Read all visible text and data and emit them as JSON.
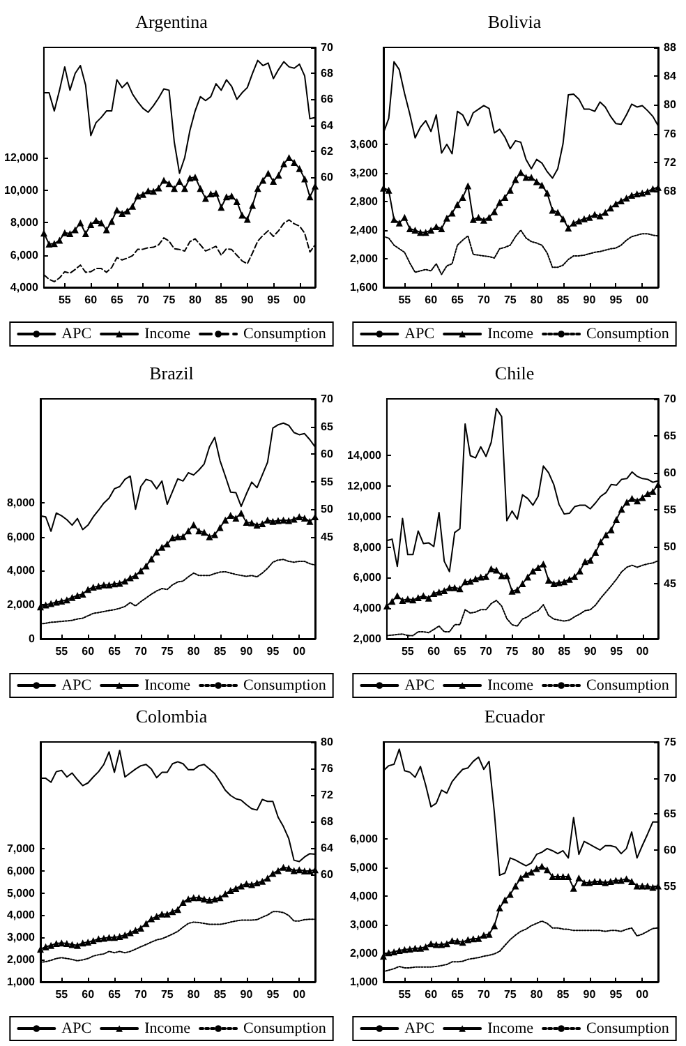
{
  "chart_data": [
    {
      "type": "line",
      "title": "Argentina",
      "legend": "bottom",
      "x": [
        1951,
        1952,
        1953,
        1954,
        1955,
        1956,
        1957,
        1958,
        1959,
        1960,
        1961,
        1962,
        1963,
        1964,
        1965,
        1966,
        1967,
        1968,
        1969,
        1970,
        1971,
        1972,
        1973,
        1974,
        1975,
        1976,
        1977,
        1978,
        1979,
        1980,
        1981,
        1982,
        1983,
        1984,
        1985,
        1986,
        1987,
        1988,
        1989,
        1990,
        1991,
        1992,
        1993,
        1994,
        1995,
        1996,
        1997,
        1998,
        1999,
        2000,
        2001,
        2002,
        2003
      ],
      "xlim": [
        1951,
        2003
      ],
      "xticks": [
        {
          "value": 1955,
          "label": "55"
        },
        {
          "value": 1960,
          "label": "60"
        },
        {
          "value": 1965,
          "label": "65"
        },
        {
          "value": 1970,
          "label": "70"
        },
        {
          "value": 1975,
          "label": "75"
        },
        {
          "value": 1980,
          "label": "80"
        },
        {
          "value": 1985,
          "label": "85"
        },
        {
          "value": 1990,
          "label": "90"
        },
        {
          "value": 1995,
          "label": "95"
        },
        {
          "value": 2000,
          "label": "00"
        }
      ],
      "ylim": [
        4000,
        18800
      ],
      "yticks": [
        {
          "value": 4000,
          "label": "4,000"
        },
        {
          "value": 6000,
          "label": "6,000"
        },
        {
          "value": 8000,
          "label": "8,000"
        },
        {
          "value": 10000,
          "label": "10,000"
        },
        {
          "value": 12000,
          "label": "12,000"
        }
      ],
      "y2lim": [
        51.5,
        70
      ],
      "y2ticks": [
        60,
        62,
        64,
        66,
        68,
        70
      ],
      "series": [
        {
          "name": "APC",
          "color": "#000000",
          "axis": "y2",
          "marker": "none",
          "line_style": "solid",
          "values": [
            66.5,
            66.5,
            65.1,
            66.7,
            68.5,
            66.7,
            68,
            68.6,
            67.1,
            63.2,
            64.2,
            64.6,
            65.1,
            65.1,
            67.5,
            66.9,
            67.3,
            66.4,
            65.8,
            65.3,
            65,
            65.5,
            66.1,
            66.8,
            66.7,
            62.7,
            60.3,
            61.5,
            63.6,
            65.1,
            66.2,
            65.9,
            66.2,
            67.2,
            66.7,
            67.5,
            67,
            66,
            66.5,
            66.9,
            68,
            69,
            68.6,
            68.8,
            67.6,
            68.3,
            68.9,
            68.5,
            68.4,
            68.7,
            67.8,
            64.5,
            64.6
          ]
        },
        {
          "name": "Income",
          "color": "#000000",
          "axis": "y",
          "marker": "triangle",
          "line_style": "solid",
          "values": [
            7340,
            6670,
            6700,
            6900,
            7370,
            7310,
            7550,
            7980,
            7310,
            7870,
            8130,
            7980,
            7550,
            8070,
            8770,
            8560,
            8710,
            9000,
            9640,
            9730,
            9960,
            9930,
            10130,
            10600,
            10400,
            10100,
            10540,
            10100,
            10740,
            10800,
            10100,
            9490,
            9760,
            9810,
            8940,
            9580,
            9640,
            9290,
            8450,
            8190,
            9060,
            10100,
            10600,
            11030,
            10540,
            10920,
            11620,
            12000,
            11700,
            11330,
            10690,
            9580,
            10250
          ]
        },
        {
          "name": "Consumption",
          "color": "#000000",
          "axis": "y",
          "marker": "none",
          "line_style": "dashed",
          "values": [
            4780,
            4490,
            4350,
            4580,
            4960,
            4870,
            5100,
            5370,
            4930,
            4960,
            5160,
            5160,
            4930,
            5220,
            5830,
            5690,
            5800,
            5950,
            6350,
            6350,
            6440,
            6470,
            6620,
            7050,
            6850,
            6380,
            6330,
            6240,
            6820,
            6990,
            6620,
            6240,
            6380,
            6530,
            5980,
            6380,
            6330,
            5980,
            5630,
            5450,
            6120,
            6850,
            7200,
            7490,
            7140,
            7490,
            7950,
            8160,
            7920,
            7780,
            7340,
            6180,
            6620
          ]
        }
      ]
    },
    {
      "type": "line",
      "title": "Bolivia",
      "legend": "bottom",
      "x": [
        1951,
        1952,
        1953,
        1954,
        1955,
        1956,
        1957,
        1958,
        1959,
        1960,
        1961,
        1962,
        1963,
        1964,
        1965,
        1966,
        1967,
        1968,
        1969,
        1970,
        1971,
        1972,
        1973,
        1974,
        1975,
        1976,
        1977,
        1978,
        1979,
        1980,
        1981,
        1982,
        1983,
        1984,
        1985,
        1986,
        1987,
        1988,
        1989,
        1990,
        1991,
        1992,
        1993,
        1994,
        1995,
        1996,
        1997,
        1998,
        1999,
        2000,
        2001,
        2002,
        2003
      ],
      "xlim": [
        1951,
        2003
      ],
      "xticks": [
        {
          "value": 1955,
          "label": "55"
        },
        {
          "value": 1960,
          "label": "60"
        },
        {
          "value": 1965,
          "label": "65"
        },
        {
          "value": 1970,
          "label": "70"
        },
        {
          "value": 1975,
          "label": "75"
        },
        {
          "value": 1980,
          "label": "80"
        },
        {
          "value": 1985,
          "label": "85"
        },
        {
          "value": 1990,
          "label": "90"
        },
        {
          "value": 1995,
          "label": "95"
        },
        {
          "value": 2000,
          "label": "00"
        }
      ],
      "ylim": [
        1600,
        4960
      ],
      "yticks": [
        {
          "value": 1600,
          "label": "1,600"
        },
        {
          "value": 2000,
          "label": "2,000"
        },
        {
          "value": 2400,
          "label": "2,400"
        },
        {
          "value": 2800,
          "label": "2,800"
        },
        {
          "value": 3200,
          "label": "3,200"
        },
        {
          "value": 3600,
          "label": "3,600"
        }
      ],
      "y2lim": [
        54.6,
        88
      ],
      "y2ticks": [
        68,
        72,
        76,
        80,
        84,
        88
      ],
      "series": [
        {
          "name": "APC",
          "color": "#000000",
          "axis": "y2",
          "marker": "none",
          "line_style": "solid",
          "values": [
            76.1,
            78.1,
            86,
            84.9,
            81.6,
            78.7,
            75.4,
            76.9,
            77.8,
            76.3,
            78.6,
            73.3,
            74.5,
            73.2,
            79.1,
            78.6,
            77.1,
            78.9,
            79.4,
            79.9,
            79.5,
            76.1,
            76.6,
            75.5,
            73.9,
            75,
            74.8,
            72.4,
            71.1,
            72.4,
            71.9,
            70.7,
            69.8,
            71.1,
            74.6,
            81.4,
            81.5,
            80.8,
            79.4,
            79.4,
            79.1,
            80.4,
            79.7,
            78.4,
            77.4,
            77.3,
            78.6,
            80.1,
            79.7,
            79.9,
            79.2,
            78.4,
            77.1
          ]
        },
        {
          "name": "Income",
          "color": "#000000",
          "axis": "y",
          "marker": "triangle",
          "line_style": "solid",
          "values": [
            2990,
            2960,
            2550,
            2500,
            2580,
            2420,
            2400,
            2370,
            2370,
            2400,
            2450,
            2420,
            2570,
            2640,
            2760,
            2860,
            3020,
            2550,
            2580,
            2540,
            2580,
            2660,
            2790,
            2860,
            2960,
            3110,
            3210,
            3140,
            3140,
            3080,
            3030,
            2920,
            2680,
            2650,
            2560,
            2430,
            2500,
            2530,
            2560,
            2580,
            2620,
            2600,
            2650,
            2710,
            2770,
            2810,
            2850,
            2890,
            2910,
            2920,
            2940,
            2980,
            3000
          ]
        },
        {
          "name": "Consumption",
          "color": "#000000",
          "axis": "y",
          "marker": "none",
          "line_style": "dotted",
          "values": [
            2310,
            2290,
            2190,
            2140,
            2090,
            1940,
            1810,
            1830,
            1850,
            1830,
            1930,
            1780,
            1900,
            1930,
            2190,
            2260,
            2320,
            2060,
            2050,
            2040,
            2030,
            2010,
            2140,
            2160,
            2190,
            2310,
            2400,
            2290,
            2240,
            2220,
            2190,
            2080,
            1880,
            1880,
            1910,
            1990,
            2040,
            2040,
            2050,
            2070,
            2090,
            2100,
            2120,
            2140,
            2150,
            2190,
            2260,
            2310,
            2330,
            2350,
            2350,
            2330,
            2320
          ]
        }
      ]
    },
    {
      "type": "line",
      "title": "Brazil",
      "legend": "bottom",
      "x": [
        1951,
        1952,
        1953,
        1954,
        1955,
        1956,
        1957,
        1958,
        1959,
        1960,
        1961,
        1962,
        1963,
        1964,
        1965,
        1966,
        1967,
        1968,
        1969,
        1970,
        1971,
        1972,
        1973,
        1974,
        1975,
        1976,
        1977,
        1978,
        1979,
        1980,
        1981,
        1982,
        1983,
        1984,
        1985,
        1986,
        1987,
        1988,
        1989,
        1990,
        1991,
        1992,
        1993,
        1994,
        1995,
        1996,
        1997,
        1998,
        1999,
        2000,
        2001,
        2002,
        2003
      ],
      "xlim": [
        1951,
        2003
      ],
      "xticks": [
        {
          "value": 1955,
          "label": "55"
        },
        {
          "value": 1960,
          "label": "60"
        },
        {
          "value": 1965,
          "label": "65"
        },
        {
          "value": 1970,
          "label": "70"
        },
        {
          "value": 1975,
          "label": "75"
        },
        {
          "value": 1980,
          "label": "80"
        },
        {
          "value": 1985,
          "label": "85"
        },
        {
          "value": 1990,
          "label": "90"
        },
        {
          "value": 1995,
          "label": "95"
        },
        {
          "value": 2000,
          "label": "00"
        }
      ],
      "ylim": [
        0,
        14100
      ],
      "yticks": [
        0,
        {
          "value": 2000,
          "label": "2,000"
        },
        {
          "value": 4000,
          "label": "4,000"
        },
        {
          "value": 6000,
          "label": "6,000"
        },
        {
          "value": 8000,
          "label": "8,000"
        }
      ],
      "y2lim": [
        26.5,
        70
      ],
      "y2ticks": [
        45,
        50,
        55,
        60,
        65,
        70
      ],
      "series": [
        {
          "name": "APC",
          "color": "#000000",
          "axis": "y2",
          "marker": "none",
          "line_style": "solid",
          "values": [
            48.8,
            48.6,
            46,
            49.3,
            48.8,
            48.1,
            47.1,
            48.3,
            46.3,
            47.1,
            48.6,
            49.8,
            51.1,
            52,
            53.7,
            54.1,
            55.4,
            56,
            50,
            54.1,
            55.4,
            55.1,
            53.7,
            55.1,
            50.9,
            53.2,
            55.5,
            55.1,
            56.6,
            56.2,
            57.1,
            58.2,
            61.3,
            63,
            58.8,
            56,
            53.1,
            53,
            50.5,
            52.8,
            54.9,
            53.9,
            56.2,
            58.5,
            64.7,
            65.3,
            65.6,
            65.2,
            63.9,
            63.5,
            63.7,
            62.6,
            61.3
          ]
        },
        {
          "name": "Income",
          "color": "#000000",
          "axis": "y",
          "marker": "triangle",
          "line_style": "solid",
          "values": [
            1880,
            1990,
            2070,
            2150,
            2210,
            2290,
            2430,
            2540,
            2620,
            2900,
            3030,
            3090,
            3170,
            3170,
            3230,
            3260,
            3390,
            3590,
            3720,
            4000,
            4280,
            4690,
            5100,
            5380,
            5570,
            5930,
            5990,
            6010,
            6340,
            6700,
            6340,
            6260,
            5990,
            6120,
            6540,
            6980,
            7260,
            7090,
            7390,
            6840,
            6810,
            6680,
            6760,
            6980,
            6900,
            6950,
            6980,
            6950,
            7030,
            7170,
            7090,
            6900,
            7170
          ]
        },
        {
          "name": "Consumption",
          "color": "#000000",
          "axis": "y",
          "marker": "none",
          "line_style": "dotted",
          "values": [
            880,
            910,
            970,
            990,
            1020,
            1050,
            1080,
            1160,
            1210,
            1350,
            1490,
            1540,
            1600,
            1660,
            1710,
            1790,
            1900,
            2130,
            1930,
            2180,
            2400,
            2620,
            2810,
            2950,
            2900,
            3170,
            3340,
            3390,
            3640,
            3860,
            3720,
            3720,
            3720,
            3830,
            3920,
            3940,
            3860,
            3780,
            3720,
            3670,
            3720,
            3640,
            3860,
            4140,
            4500,
            4630,
            4660,
            4550,
            4500,
            4550,
            4550,
            4410,
            4330
          ]
        }
      ]
    },
    {
      "type": "line",
      "title": "Chile",
      "legend": "bottom",
      "x": [
        1951,
        1952,
        1953,
        1954,
        1955,
        1956,
        1957,
        1958,
        1959,
        1960,
        1961,
        1962,
        1963,
        1964,
        1965,
        1966,
        1967,
        1968,
        1969,
        1970,
        1971,
        1972,
        1973,
        1974,
        1975,
        1976,
        1977,
        1978,
        1979,
        1980,
        1981,
        1982,
        1983,
        1984,
        1985,
        1986,
        1987,
        1988,
        1989,
        1990,
        1991,
        1992,
        1993,
        1994,
        1995,
        1996,
        1997,
        1998,
        1999,
        2000,
        2001,
        2002,
        2003
      ],
      "xlim": [
        1951,
        2003
      ],
      "xticks": [
        {
          "value": 1955,
          "label": "55"
        },
        {
          "value": 1960,
          "label": "60"
        },
        {
          "value": 1965,
          "label": "65"
        },
        {
          "value": 1970,
          "label": "70"
        },
        {
          "value": 1975,
          "label": "75"
        },
        {
          "value": 1980,
          "label": "80"
        },
        {
          "value": 1985,
          "label": "85"
        },
        {
          "value": 1990,
          "label": "90"
        },
        {
          "value": 1995,
          "label": "95"
        },
        {
          "value": 2000,
          "label": "00"
        }
      ],
      "ylim": [
        2000,
        17700
      ],
      "yticks": [
        {
          "value": 2000,
          "label": "2,000"
        },
        {
          "value": 4000,
          "label": "4,000"
        },
        {
          "value": 6000,
          "label": "6,000"
        },
        {
          "value": 8000,
          "label": "8,000"
        },
        {
          "value": 10000,
          "label": "10,000"
        },
        {
          "value": 12000,
          "label": "12,000"
        },
        {
          "value": 14000,
          "label": "14,000"
        }
      ],
      "y2lim": [
        37.5,
        70
      ],
      "y2ticks": [
        45,
        50,
        55,
        60,
        65,
        70
      ],
      "series": [
        {
          "name": "APC",
          "color": "#000000",
          "axis": "y2",
          "marker": "none",
          "line_style": "solid",
          "values": [
            50.8,
            51,
            47.3,
            53.8,
            48.9,
            48.9,
            52.1,
            50.4,
            50.5,
            50,
            54.6,
            48,
            46.6,
            51.9,
            52.4,
            66.6,
            62.3,
            62,
            63.5,
            62.2,
            64.1,
            68.7,
            67.6,
            53.5,
            54.8,
            53.7,
            57,
            56.5,
            55.6,
            56.8,
            60.9,
            60,
            58.4,
            55.7,
            54.4,
            54.5,
            55.4,
            55.6,
            55.6,
            55.1,
            55.9,
            56.8,
            57.3,
            58.4,
            58.3,
            59.1,
            59.2,
            60.1,
            59.5,
            59.2,
            59.1,
            58.7,
            58.9
          ]
        },
        {
          "name": "Income",
          "color": "#000000",
          "axis": "y",
          "marker": "triangle",
          "line_style": "solid",
          "values": [
            4140,
            4450,
            4820,
            4510,
            4600,
            4540,
            4690,
            4820,
            4660,
            4970,
            5060,
            5150,
            5340,
            5340,
            5280,
            5730,
            5760,
            5920,
            6040,
            6070,
            6590,
            6500,
            6130,
            6130,
            5120,
            5210,
            5610,
            6040,
            6440,
            6650,
            6900,
            5830,
            5610,
            5670,
            5730,
            5890,
            6070,
            6440,
            7050,
            7140,
            7660,
            8340,
            8800,
            9130,
            9810,
            10480,
            10940,
            11180,
            11030,
            11240,
            11490,
            11640,
            12100
          ]
        },
        {
          "name": "Consumption",
          "color": "#000000",
          "axis": "y",
          "marker": "none",
          "line_style": "dotted",
          "values": [
            2210,
            2240,
            2280,
            2310,
            2210,
            2210,
            2460,
            2460,
            2400,
            2610,
            2830,
            2460,
            2460,
            2920,
            2920,
            3900,
            3680,
            3750,
            3900,
            3900,
            4300,
            4510,
            4140,
            3320,
            2920,
            2830,
            3290,
            3440,
            3680,
            3840,
            4230,
            3530,
            3290,
            3220,
            3160,
            3220,
            3440,
            3620,
            3840,
            3900,
            4200,
            4660,
            5060,
            5460,
            5890,
            6380,
            6680,
            6810,
            6680,
            6810,
            6900,
            6960,
            7110
          ]
        }
      ]
    },
    {
      "type": "line",
      "title": "Colombia",
      "legend": "bottom",
      "x": [
        1951,
        1952,
        1953,
        1954,
        1955,
        1956,
        1957,
        1958,
        1959,
        1960,
        1961,
        1962,
        1963,
        1964,
        1965,
        1966,
        1967,
        1968,
        1969,
        1970,
        1971,
        1972,
        1973,
        1974,
        1975,
        1976,
        1977,
        1978,
        1979,
        1980,
        1981,
        1982,
        1983,
        1984,
        1985,
        1986,
        1987,
        1988,
        1989,
        1990,
        1991,
        1992,
        1993,
        1994,
        1995,
        1996,
        1997,
        1998,
        1999,
        2000,
        2001,
        2002,
        2003
      ],
      "xlim": [
        1951,
        2003
      ],
      "xticks": [
        {
          "value": 1955,
          "label": "55"
        },
        {
          "value": 1960,
          "label": "60"
        },
        {
          "value": 1965,
          "label": "65"
        },
        {
          "value": 1970,
          "label": "70"
        },
        {
          "value": 1975,
          "label": "75"
        },
        {
          "value": 1980,
          "label": "80"
        },
        {
          "value": 1985,
          "label": "85"
        },
        {
          "value": 1990,
          "label": "90"
        },
        {
          "value": 1995,
          "label": "95"
        },
        {
          "value": 2000,
          "label": "00"
        }
      ],
      "ylim": [
        1000,
        11800
      ],
      "yticks": [
        {
          "value": 1000,
          "label": "1,000"
        },
        {
          "value": 2000,
          "label": "2,000"
        },
        {
          "value": 3000,
          "label": "3,000"
        },
        {
          "value": 4000,
          "label": "4,000"
        },
        {
          "value": 5000,
          "label": "5,000"
        },
        {
          "value": 6000,
          "label": "6,000"
        },
        {
          "value": 7000,
          "label": "7,000"
        }
      ],
      "y2lim": [
        43.7,
        80
      ],
      "y2ticks": [
        60,
        64,
        68,
        72,
        76,
        80
      ],
      "series": [
        {
          "name": "APC",
          "color": "#000000",
          "axis": "y2",
          "marker": "none",
          "line_style": "solid",
          "values": [
            74.5,
            74.5,
            73.9,
            75.5,
            75.7,
            74.7,
            75.3,
            74.3,
            73.4,
            73.8,
            74.7,
            75.5,
            76.6,
            78.5,
            75.4,
            78.7,
            74.7,
            75.3,
            75.9,
            76.4,
            76.6,
            75.9,
            74.6,
            75.4,
            75.4,
            76.7,
            77,
            76.7,
            75.8,
            75.8,
            76.4,
            76.6,
            75.9,
            75.2,
            74,
            72.7,
            71.9,
            71.4,
            71.2,
            70.5,
            69.9,
            69.7,
            71.3,
            71,
            71,
            68.6,
            67.2,
            65.4,
            62.1,
            61.9,
            62.6,
            63.1,
            63
          ]
        },
        {
          "name": "Income",
          "color": "#000000",
          "axis": "y",
          "marker": "triangle",
          "line_style": "solid",
          "values": [
            2470,
            2580,
            2640,
            2730,
            2750,
            2730,
            2680,
            2640,
            2750,
            2790,
            2850,
            2940,
            2960,
            3000,
            3000,
            3040,
            3110,
            3210,
            3320,
            3420,
            3630,
            3840,
            3950,
            4050,
            4050,
            4160,
            4260,
            4580,
            4730,
            4790,
            4790,
            4730,
            4680,
            4730,
            4790,
            4960,
            5110,
            5210,
            5320,
            5420,
            5380,
            5460,
            5530,
            5670,
            5880,
            6010,
            6160,
            6120,
            6010,
            6050,
            5990,
            5990,
            6050
          ]
        },
        {
          "name": "Consumption",
          "color": "#000000",
          "axis": "y",
          "marker": "none",
          "line_style": "dotted",
          "values": [
            1880,
            1910,
            1970,
            2050,
            2090,
            2050,
            2010,
            1950,
            1990,
            2050,
            2160,
            2220,
            2260,
            2370,
            2310,
            2370,
            2310,
            2370,
            2470,
            2580,
            2680,
            2790,
            2890,
            2940,
            3040,
            3150,
            3270,
            3460,
            3630,
            3690,
            3670,
            3630,
            3590,
            3590,
            3590,
            3630,
            3690,
            3740,
            3780,
            3780,
            3780,
            3800,
            3910,
            4010,
            4160,
            4160,
            4120,
            3990,
            3740,
            3740,
            3800,
            3820,
            3820
          ]
        }
      ]
    },
    {
      "type": "line",
      "title": "Ecuador",
      "legend": "bottom",
      "x": [
        1951,
        1952,
        1953,
        1954,
        1955,
        1956,
        1957,
        1958,
        1959,
        1960,
        1961,
        1962,
        1963,
        1964,
        1965,
        1966,
        1967,
        1968,
        1969,
        1970,
        1971,
        1972,
        1973,
        1974,
        1975,
        1976,
        1977,
        1978,
        1979,
        1980,
        1981,
        1982,
        1983,
        1984,
        1985,
        1986,
        1987,
        1988,
        1989,
        1990,
        1991,
        1992,
        1993,
        1994,
        1995,
        1996,
        1997,
        1998,
        1999,
        2000,
        2001,
        2002,
        2003
      ],
      "xlim": [
        1951,
        2003
      ],
      "xticks": [
        {
          "value": 1955,
          "label": "55"
        },
        {
          "value": 1960,
          "label": "60"
        },
        {
          "value": 1965,
          "label": "65"
        },
        {
          "value": 1970,
          "label": "70"
        },
        {
          "value": 1975,
          "label": "75"
        },
        {
          "value": 1980,
          "label": "80"
        },
        {
          "value": 1985,
          "label": "85"
        },
        {
          "value": 1990,
          "label": "90"
        },
        {
          "value": 1995,
          "label": "95"
        },
        {
          "value": 2000,
          "label": "00"
        }
      ],
      "ylim": [
        1000,
        9410
      ],
      "yticks": [
        {
          "value": 1000,
          "label": "1,000"
        },
        {
          "value": 2000,
          "label": "2,000"
        },
        {
          "value": 3000,
          "label": "3,000"
        },
        {
          "value": 4000,
          "label": "4,000"
        },
        {
          "value": 5000,
          "label": "5,000"
        },
        {
          "value": 6000,
          "label": "6,000"
        }
      ],
      "y2lim": [
        41.7,
        75
      ],
      "y2ticks": [
        55,
        60,
        65,
        70,
        75
      ],
      "series": [
        {
          "name": "APC",
          "color": "#000000",
          "axis": "y2",
          "marker": "none",
          "line_style": "solid",
          "values": [
            71,
            71.7,
            71.9,
            74,
            71,
            70.8,
            70.1,
            71.6,
            69,
            66,
            66.5,
            68.3,
            67.9,
            69.5,
            70.4,
            71.2,
            71.4,
            72.3,
            72.9,
            71.2,
            72.3,
            65.2,
            56.5,
            56.8,
            58.9,
            58.6,
            58.2,
            57.8,
            58.2,
            59.4,
            59.7,
            60.2,
            59.9,
            59.5,
            59.9,
            58.9,
            64.5,
            59.4,
            61.2,
            60.8,
            60.4,
            60,
            60.6,
            60.6,
            60.4,
            59.5,
            60.2,
            62.5,
            58.9,
            60.6,
            62.2,
            63.9,
            63.9
          ]
        },
        {
          "name": "Income",
          "color": "#000000",
          "axis": "y",
          "marker": "triangle",
          "line_style": "solid",
          "values": [
            1900,
            2020,
            2050,
            2100,
            2130,
            2150,
            2180,
            2180,
            2230,
            2340,
            2310,
            2310,
            2340,
            2440,
            2430,
            2390,
            2480,
            2510,
            2520,
            2640,
            2670,
            2970,
            3590,
            3870,
            4070,
            4360,
            4640,
            4770,
            4850,
            4970,
            5050,
            4930,
            4690,
            4690,
            4690,
            4690,
            4280,
            4640,
            4480,
            4480,
            4520,
            4520,
            4480,
            4520,
            4560,
            4560,
            4610,
            4520,
            4360,
            4360,
            4360,
            4310,
            4360
          ]
        },
        {
          "name": "Consumption",
          "color": "#000000",
          "axis": "y",
          "marker": "none",
          "line_style": "dotted",
          "values": [
            1360,
            1410,
            1460,
            1540,
            1490,
            1490,
            1520,
            1520,
            1520,
            1520,
            1540,
            1570,
            1610,
            1700,
            1700,
            1720,
            1790,
            1820,
            1850,
            1900,
            1930,
            1980,
            2070,
            2280,
            2480,
            2640,
            2770,
            2850,
            2970,
            3050,
            3130,
            3050,
            2890,
            2890,
            2850,
            2840,
            2800,
            2800,
            2800,
            2800,
            2800,
            2800,
            2770,
            2800,
            2800,
            2770,
            2840,
            2890,
            2610,
            2670,
            2770,
            2870,
            2890
          ]
        }
      ]
    }
  ]
}
